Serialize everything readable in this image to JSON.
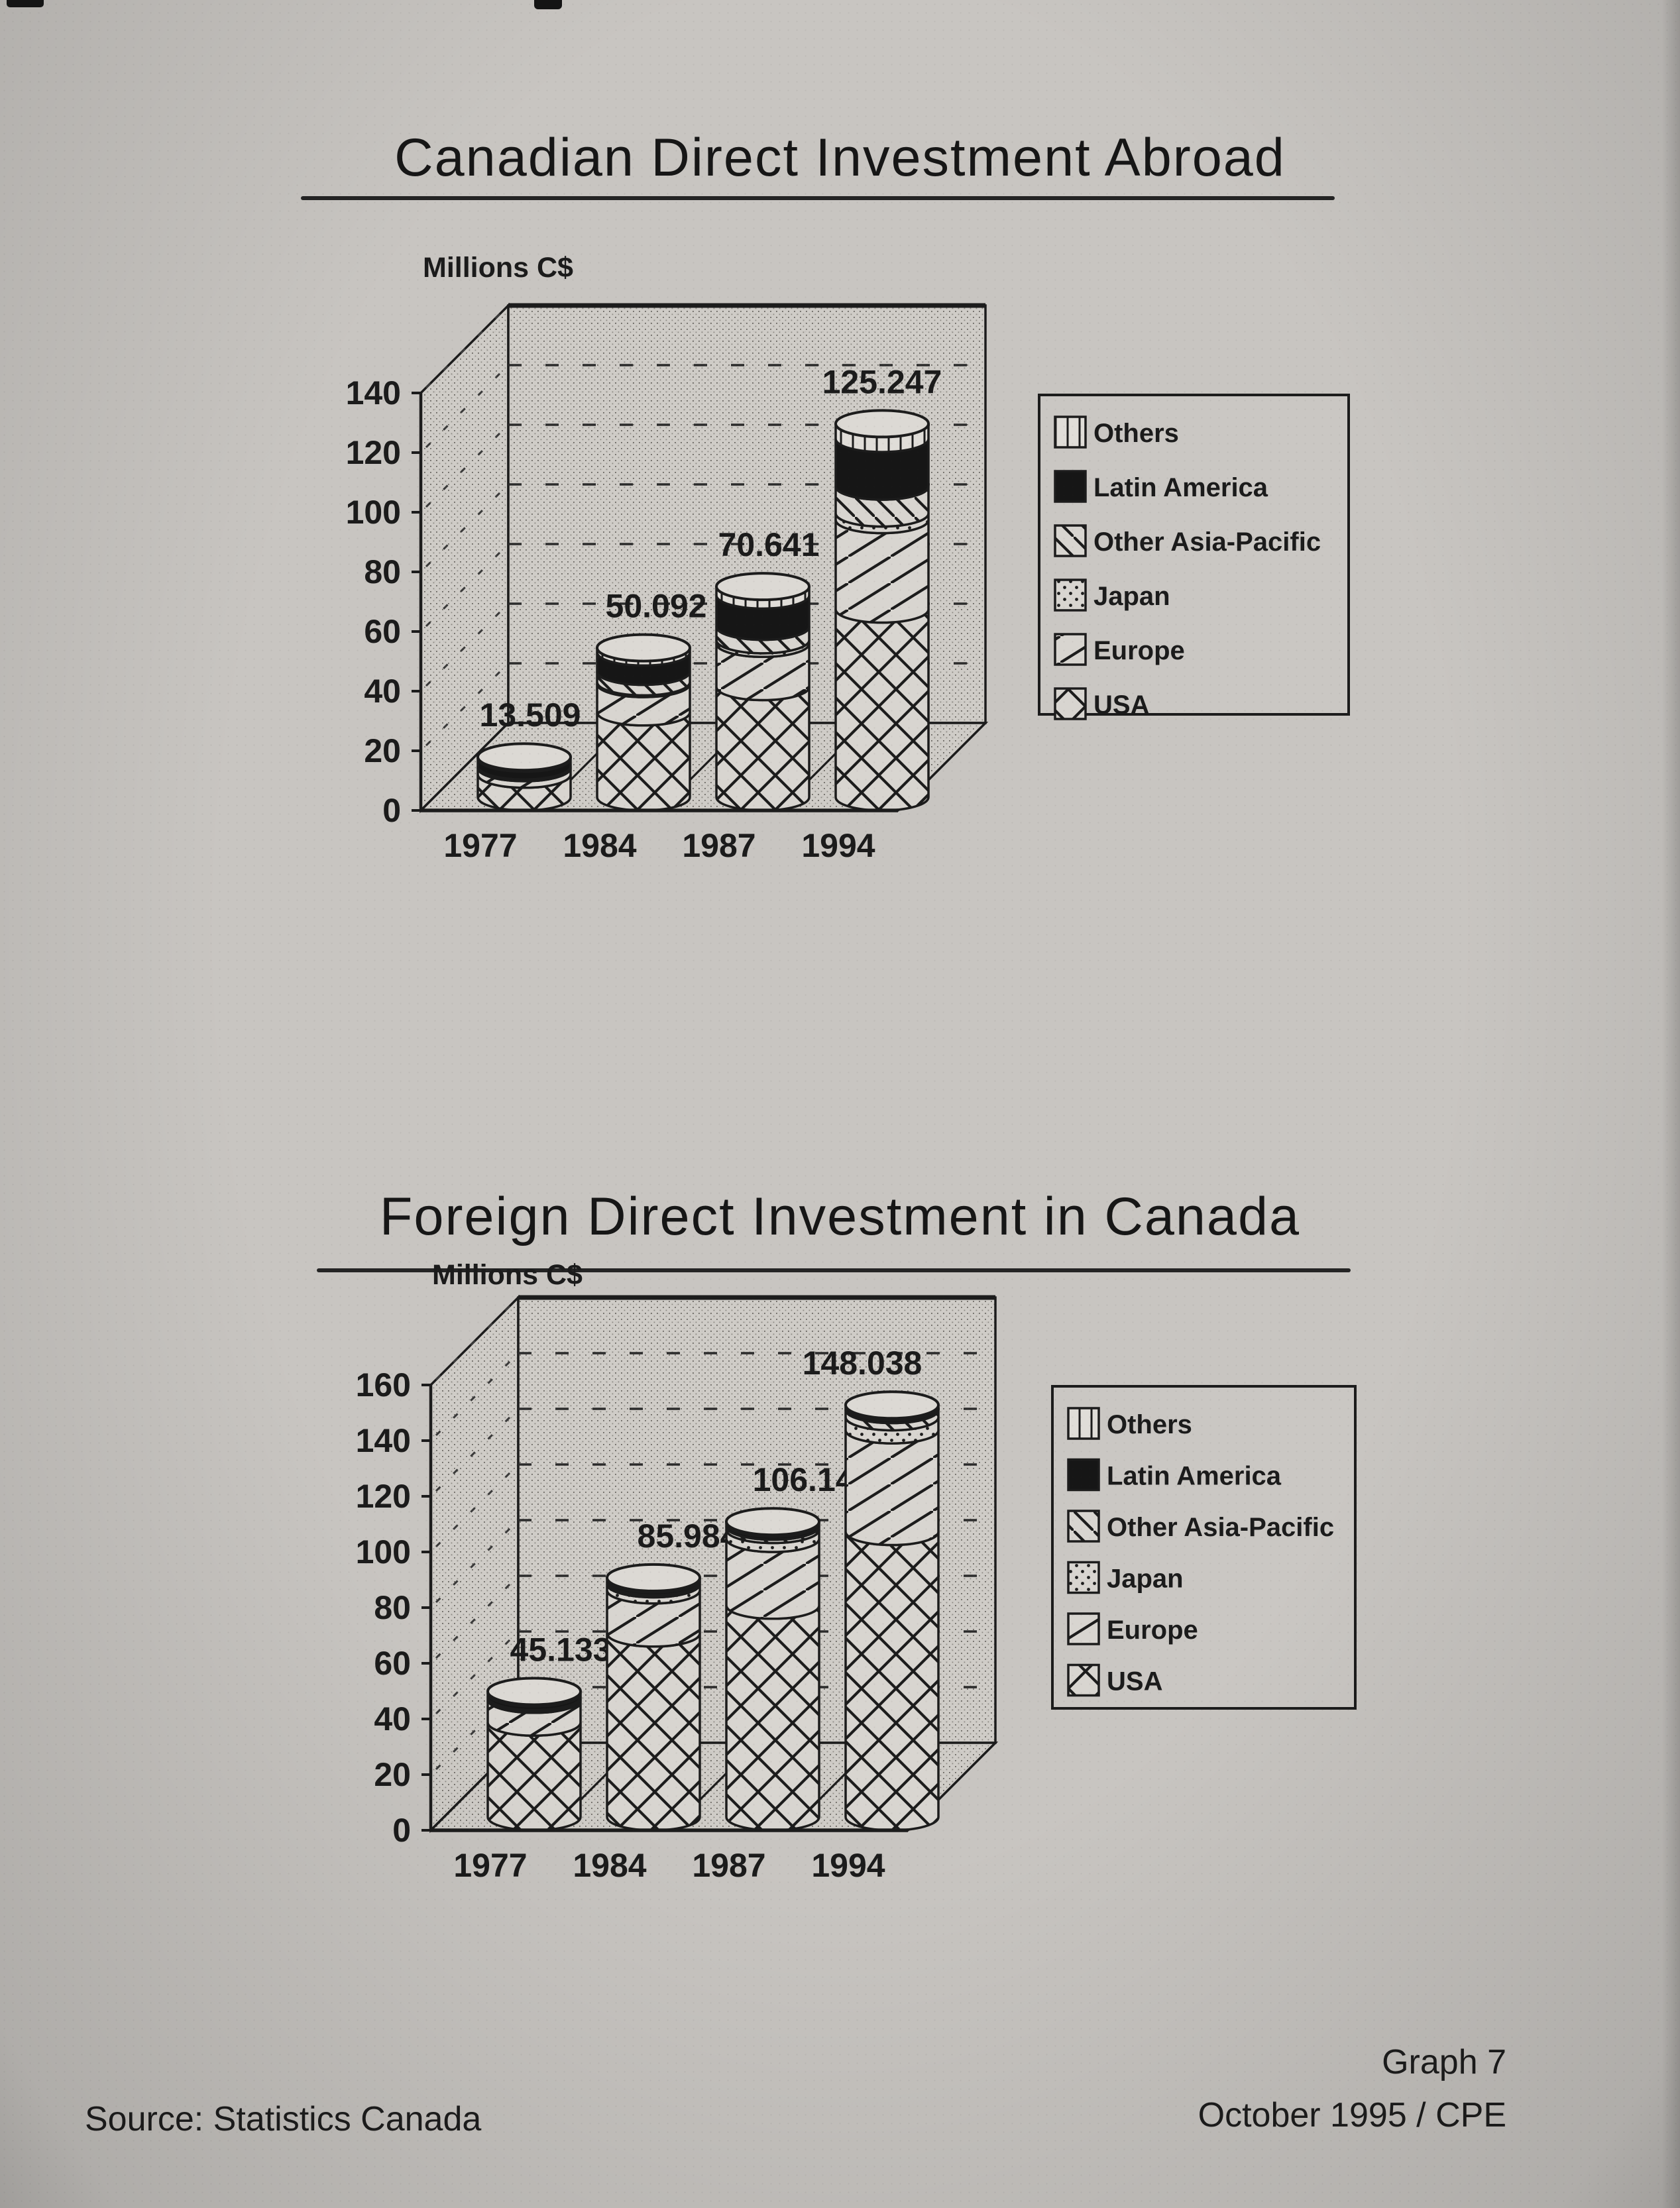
{
  "page": {
    "kind": "scanned grayscale photocopy of a statistics page with two 3-D stacked cylinder charts",
    "source_note": "Source: Statistics Canada",
    "graph_label": "Graph 7",
    "date_label": "October 1995 / CPE"
  },
  "chart_data": [
    {
      "type": "bar",
      "style": "3d-stacked-cylinders",
      "title": "Canadian Direct Investment Abroad",
      "unit_label": "Millions C$",
      "categories": [
        "1977",
        "1984",
        "1987",
        "1994"
      ],
      "totals": [
        13.509,
        50.092,
        70.641,
        125.247
      ],
      "total_labels": [
        "13.509",
        "50.092",
        "70.641",
        "125.247"
      ],
      "ylim": [
        0,
        140
      ],
      "ytick_step": 20,
      "grid": "dashed horizontal lines on dotted back wall",
      "legend_position": "right",
      "note": "Only the stacked totals are printed on the chart; the per-region segment values are estimated from segment heights in the graphic.",
      "series": [
        {
          "name": "USA",
          "pattern": "usa",
          "values": [
            7.6,
            28.5,
            37.0,
            63.0
          ]
        },
        {
          "name": "Europe",
          "pattern": "europe",
          "values": [
            2.2,
            9.5,
            14.5,
            30.0
          ]
        },
        {
          "name": "Japan",
          "pattern": "japan",
          "values": [
            0.2,
            0.6,
            1.2,
            2.2
          ]
        },
        {
          "name": "Other Asia-Pacific",
          "pattern": "oap",
          "values": [
            0.4,
            3.5,
            4.5,
            9.0
          ]
        },
        {
          "name": "Latin America",
          "pattern": "latam",
          "values": [
            2.6,
            6.5,
            10.5,
            16.0
          ]
        },
        {
          "name": "Others",
          "pattern": "others",
          "values": [
            0.509,
            1.492,
            2.941,
            5.047
          ]
        }
      ],
      "legend": [
        {
          "label": "Others",
          "pattern": "others"
        },
        {
          "label": "Latin America",
          "pattern": "latam"
        },
        {
          "label": "Other Asia-Pacific",
          "pattern": "oap"
        },
        {
          "label": "Japan",
          "pattern": "japan"
        },
        {
          "label": "Europe",
          "pattern": "europe"
        },
        {
          "label": "USA",
          "pattern": "usa"
        }
      ]
    },
    {
      "type": "bar",
      "style": "3d-stacked-cylinders",
      "title": "Foreign Direct Investment in Canada",
      "unit_label": "Millions C$",
      "categories": [
        "1977",
        "1984",
        "1987",
        "1994"
      ],
      "totals": [
        45.133,
        85.984,
        106.144,
        148.038
      ],
      "total_labels": [
        "45.133",
        "85.984",
        "106.144",
        "148.038"
      ],
      "ylim": [
        0,
        160
      ],
      "ytick_step": 20,
      "grid": "dashed horizontal lines on dotted back wall",
      "legend_position": "right",
      "note": "Only the stacked totals are printed on the chart; the per-region segment values are estimated from segment heights in the graphic.",
      "series": [
        {
          "name": "USA",
          "pattern": "usa",
          "values": [
            34.0,
            66.0,
            76.0,
            102.5
          ]
        },
        {
          "name": "Europe",
          "pattern": "europe",
          "values": [
            8.2,
            15.5,
            24.0,
            36.5
          ]
        },
        {
          "name": "Japan",
          "pattern": "japan",
          "values": [
            0.6,
            2.2,
            3.2,
            4.7
          ]
        },
        {
          "name": "Other Asia-Pacific",
          "pattern": "oap",
          "values": [
            0.4,
            0.8,
            1.2,
            2.6
          ]
        },
        {
          "name": "Latin America",
          "pattern": "latam",
          "values": [
            1.3,
            1.0,
            1.1,
            1.0
          ]
        },
        {
          "name": "Others",
          "pattern": "others",
          "values": [
            0.633,
            0.484,
            0.644,
            0.738
          ]
        }
      ],
      "legend": [
        {
          "label": "Others",
          "pattern": "others"
        },
        {
          "label": "Latin America",
          "pattern": "latam"
        },
        {
          "label": "Other Asia-Pacific",
          "pattern": "oap"
        },
        {
          "label": "Japan",
          "pattern": "japan"
        },
        {
          "label": "Europe",
          "pattern": "europe"
        },
        {
          "label": "USA",
          "pattern": "usa"
        }
      ]
    }
  ]
}
